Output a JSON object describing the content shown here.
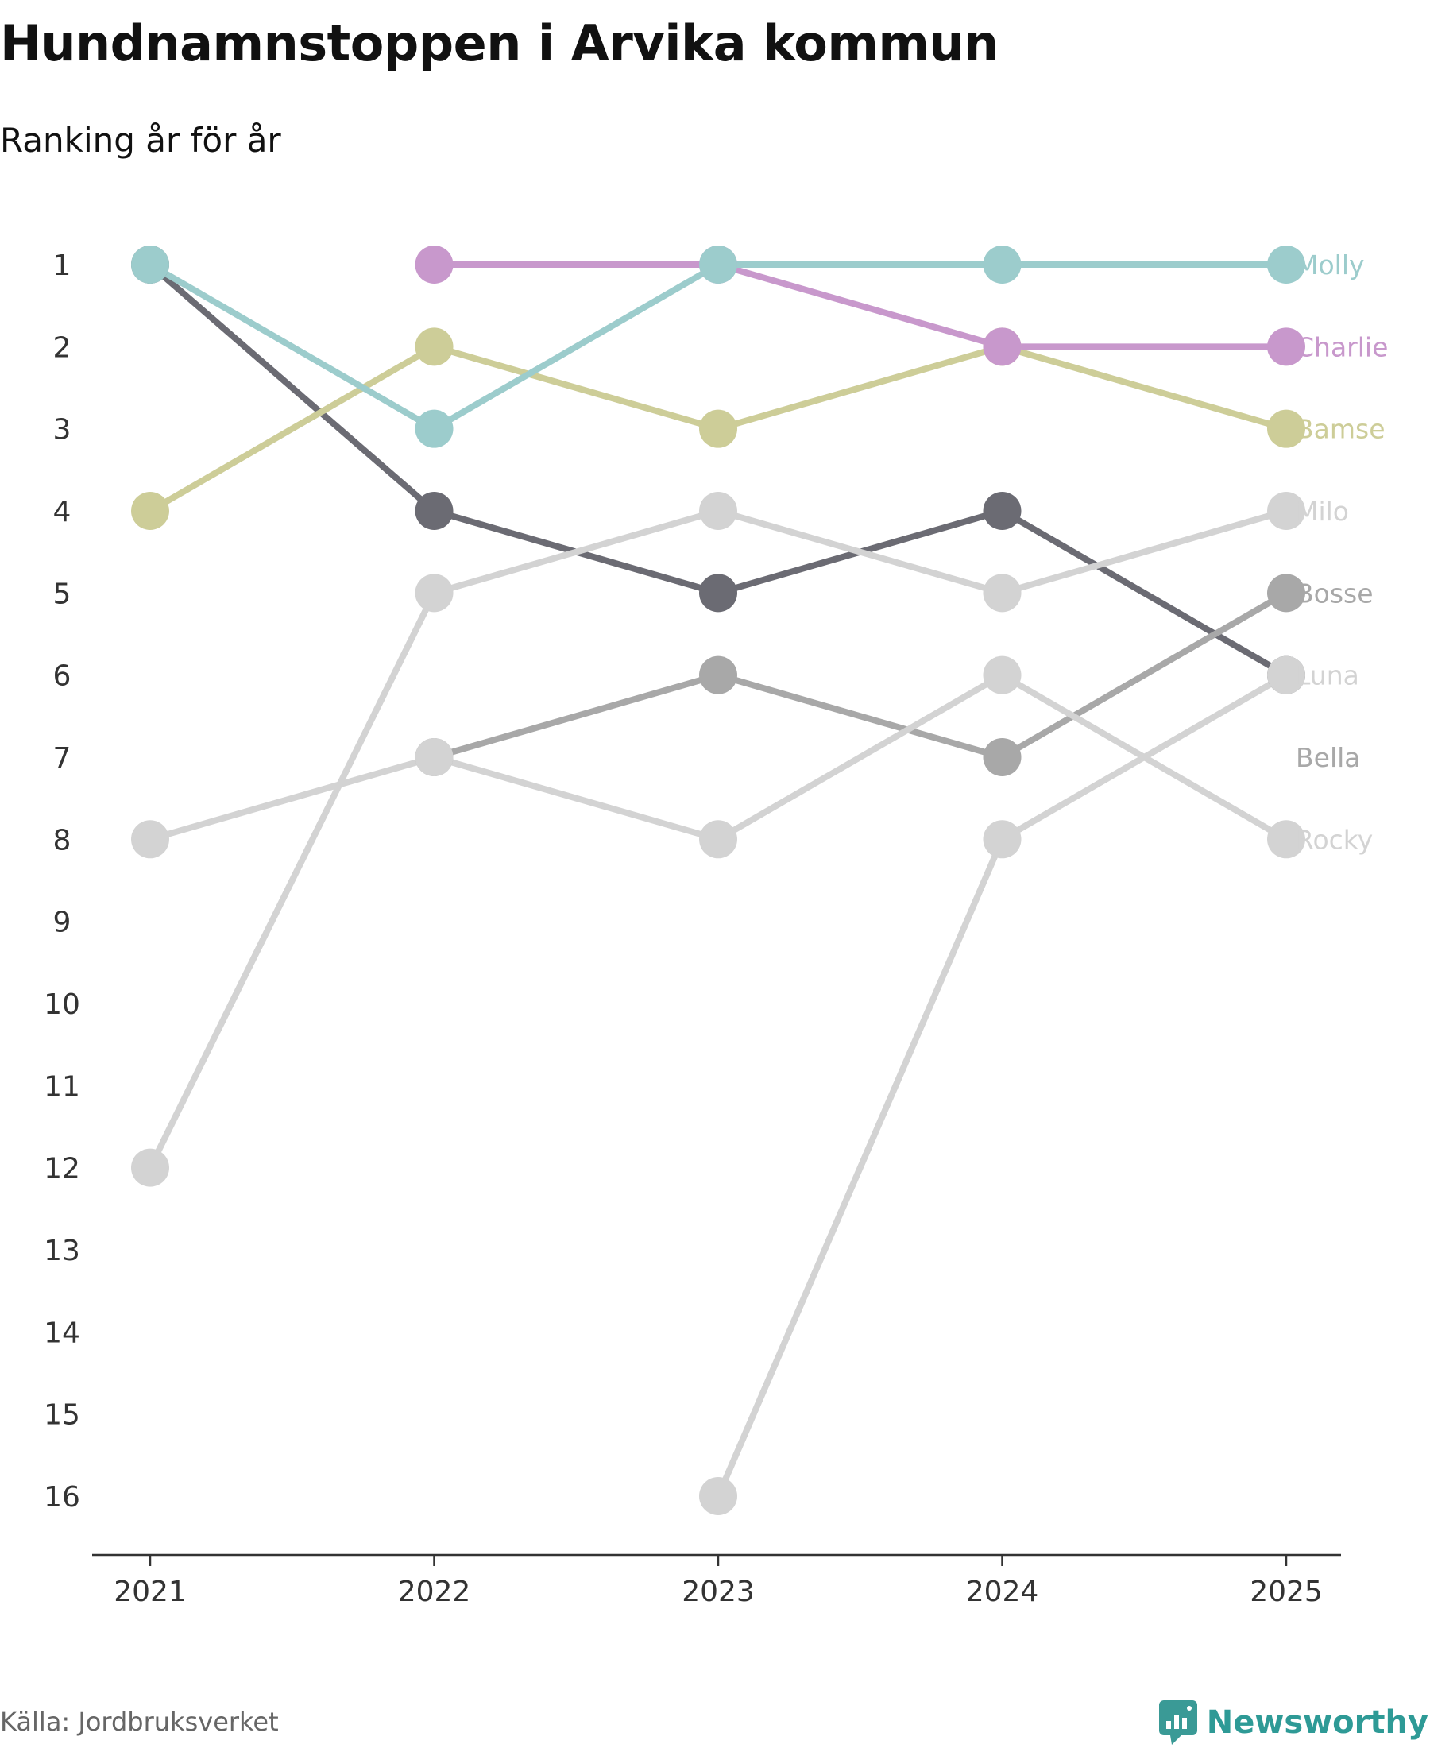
{
  "title": "Hundnamnstoppen i Arvika kommun",
  "subtitle": "Ranking år för år",
  "source": "Källa: Jordbruksverket",
  "brand": {
    "name": "Newsworthy",
    "icon": "newsworthy-logo-icon",
    "color": "#3a9a96"
  },
  "chart_data": {
    "type": "line",
    "subtype": "bump",
    "title": "Hundnamnstoppen i Arvika kommun",
    "subtitle": "Ranking år för år",
    "xlabel": "",
    "ylabel": "",
    "x": [
      "2021",
      "2022",
      "2023",
      "2024",
      "2025"
    ],
    "y_ticks": [
      "1",
      "2",
      "3",
      "4",
      "5",
      "6",
      "7",
      "8",
      "9",
      "10",
      "11",
      "12",
      "13",
      "14",
      "15",
      "16"
    ],
    "ylim": [
      1,
      16
    ],
    "y_inverted": true,
    "grid": false,
    "legend": "direct labels at right end of lines",
    "series": [
      {
        "name": "Bella",
        "color": "#6b6b73",
        "values": [
          1,
          4,
          5,
          4,
          6
        ]
      },
      {
        "name": "Bosse",
        "color": "#a8a8a8",
        "values": [
          null,
          7,
          6,
          7,
          5
        ]
      },
      {
        "name": "Luna",
        "color": "#d3d3d3",
        "values": [
          null,
          null,
          16,
          8,
          6
        ]
      },
      {
        "name": "Rocky",
        "color": "#d3d3d3",
        "values": [
          8,
          7,
          8,
          6,
          8
        ]
      },
      {
        "name": "Milo",
        "color": "#d3d3d3",
        "values": [
          12,
          5,
          4,
          5,
          4
        ]
      },
      {
        "name": "Bamse",
        "color": "#cdcd98",
        "values": [
          4,
          2,
          3,
          2,
          3
        ]
      },
      {
        "name": "Charlie",
        "color": "#c898cc",
        "values": [
          null,
          1,
          1,
          2,
          2
        ]
      },
      {
        "name": "Molly",
        "color": "#9ccccc",
        "values": [
          1,
          3,
          1,
          1,
          1
        ]
      }
    ],
    "end_labels": [
      {
        "name": "Molly",
        "rank": 1,
        "color": "#9ccccc"
      },
      {
        "name": "Charlie",
        "rank": 2,
        "color": "#c898cc"
      },
      {
        "name": "Bamse",
        "rank": 3,
        "color": "#cdcd98"
      },
      {
        "name": "Milo",
        "rank": 4,
        "color": "#d3d3d3"
      },
      {
        "name": "Bosse",
        "rank": 5,
        "color": "#a8a8a8"
      },
      {
        "name": "Luna",
        "rank": 6,
        "color": "#d3d3d3"
      },
      {
        "name": "Bella",
        "rank": 7,
        "color": "#a8a8a8"
      },
      {
        "name": "Rocky",
        "rank": 8,
        "color": "#d3d3d3"
      }
    ]
  }
}
